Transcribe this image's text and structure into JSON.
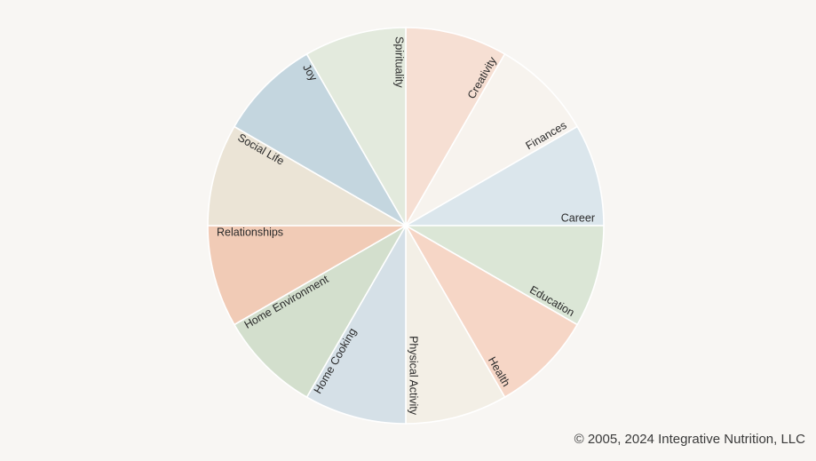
{
  "wheel": {
    "segments": [
      {
        "label": "Creativity",
        "color": "#f6dfd3"
      },
      {
        "label": "Finances",
        "color": "#f7f3ee"
      },
      {
        "label": "Career",
        "color": "#dbe6ec"
      },
      {
        "label": "Education",
        "color": "#dbe6d6"
      },
      {
        "label": "Health",
        "color": "#f6d6c6"
      },
      {
        "label": "Physical Activity",
        "color": "#f3efe6"
      },
      {
        "label": "Home Cooking",
        "color": "#d5e0e7"
      },
      {
        "label": "Home Environment",
        "color": "#d3dfcd"
      },
      {
        "label": "Relationships",
        "color": "#f1cbb6"
      },
      {
        "label": "Social Life",
        "color": "#ebe4d6"
      },
      {
        "label": "Joy",
        "color": "#c4d6df"
      },
      {
        "label": "Spirituality",
        "color": "#e3eadd"
      }
    ],
    "divider_color": "#ffffff"
  },
  "footer": {
    "copyright": "© 2005, 2024 Integrative Nutrition, LLC"
  }
}
